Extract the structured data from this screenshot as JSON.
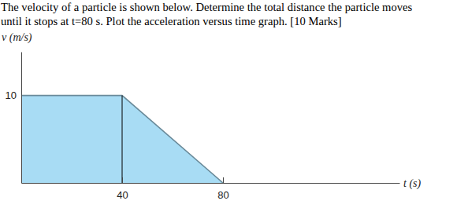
{
  "question": [
    "The velocity of a particle is shown below. Determine the total distance the particle moves",
    "until it stops at t=80 s. Plot the acceleration versus time graph. [10 Marks]"
  ],
  "chart_data": {
    "type": "area",
    "x": [
      0,
      40,
      80
    ],
    "values": [
      10,
      10,
      0
    ],
    "xlabel": "t (s)",
    "ylabel": "v (m/s)",
    "xlim": [
      0,
      150
    ],
    "ylim": [
      0,
      15
    ],
    "xticks": [
      40,
      80
    ],
    "yticks": [
      10
    ],
    "color": "#a8dcf4",
    "grid": false
  }
}
